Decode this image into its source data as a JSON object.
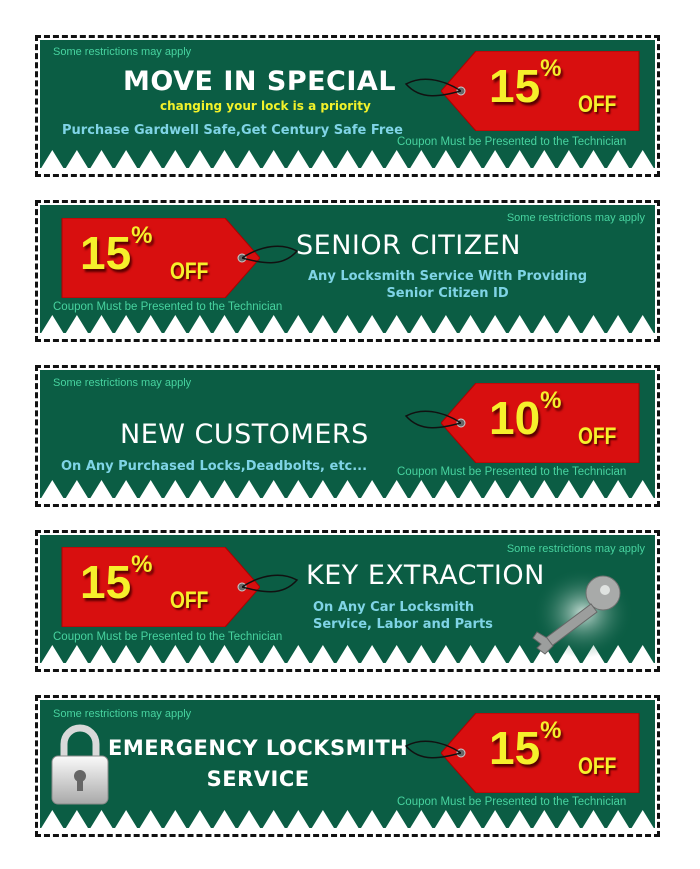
{
  "colors": {
    "coupon_green": "#0b5d44",
    "tag_red": "#d80f0f",
    "percent_yellow": "#f6f02b"
  },
  "coupons": [
    {
      "restrictions": "Some restrictions may apply",
      "title": "MOVE IN SPECIAL",
      "tagline": "changing your lock is a priority",
      "subtitle": "Purchase Gardwell Safe,Get Century Safe Free",
      "discount": "15",
      "percent": "%",
      "off": "OFF",
      "notice": "Coupon Must be Presented to the Technician",
      "tag_side": "right"
    },
    {
      "restrictions": "Some restrictions may apply",
      "title": "SENIOR CITIZEN",
      "subtitle_1": "Any Locksmith Service With Providing",
      "subtitle_2": "Senior Citizen ID",
      "discount": "15",
      "percent": "%",
      "off": "OFF",
      "notice": "Coupon Must be Presented to the Technician",
      "tag_side": "left"
    },
    {
      "restrictions": "Some restrictions may apply",
      "title": "NEW CUSTOMERS",
      "subtitle": "On Any Purchased Locks,Deadbolts, etc...",
      "discount": "10",
      "percent": "%",
      "off": "OFF",
      "notice": "Coupon Must be Presented to the Technician",
      "tag_side": "right"
    },
    {
      "restrictions": "Some restrictions may apply",
      "title": "KEY EXTRACTION",
      "subtitle_1": "On Any Car Locksmith",
      "subtitle_2": "Service, Labor and Parts",
      "discount": "15",
      "percent": "%",
      "off": "OFF",
      "notice": "Coupon Must be Presented to the Technician",
      "tag_side": "left",
      "icon": "key-icon"
    },
    {
      "restrictions": "Some restrictions may apply",
      "title_1": "EMERGENCY LOCKSMITH",
      "title_2": "SERVICE",
      "discount": "15",
      "percent": "%",
      "off": "OFF",
      "notice": "Coupon Must be Presented to the Technician",
      "tag_side": "right",
      "icon": "padlock-icon"
    }
  ]
}
